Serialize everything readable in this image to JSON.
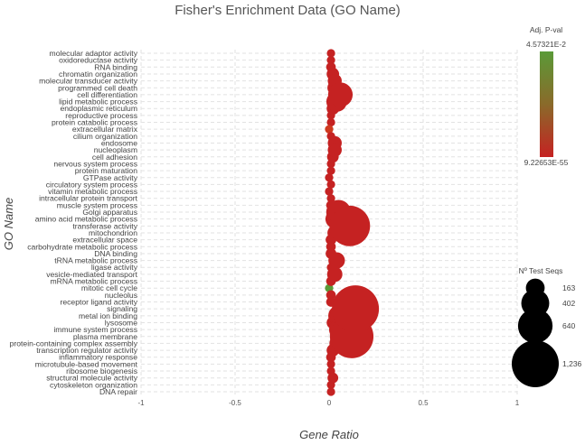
{
  "chart_data": {
    "type": "scatter",
    "title": "Fisher's Enrichment Data (GO Name)",
    "xlabel": "Gene Ratio",
    "ylabel": "GO Name",
    "xlim": [
      -1,
      1
    ],
    "x_ticks": [
      "-1",
      "-0.5",
      "0",
      "0.5",
      "1"
    ],
    "grid": true,
    "categories": [
      "molecular adaptor activity",
      "oxidoreductase activity",
      "RNA binding",
      "chromatin organization",
      "molecular transducer activity",
      "programmed cell death",
      "cell differentiation",
      "lipid metabolic process",
      "endoplasmic reticulum",
      "reproductive process",
      "protein catabolic process",
      "extracellular matrix",
      "cilium organization",
      "endosome",
      "nucleoplasm",
      "cell adhesion",
      "nervous system process",
      "protein maturation",
      "GTPase activity",
      "circulatory system process",
      "vitamin metabolic process",
      "intracellular protein transport",
      "muscle system process",
      "Golgi apparatus",
      "amino acid metabolic process",
      "transferase activity",
      "mitochondrion",
      "extracellular space",
      "carbohydrate metabolic process",
      "DNA binding",
      "tRNA metabolic process",
      "ligase activity",
      "vesicle-mediated transport",
      "mRNA metabolic process",
      "mitotic cell cycle",
      "nucleolus",
      "receptor ligand activity",
      "signaling",
      "metal ion binding",
      "lysosome",
      "immune system process",
      "plasma membrane",
      "protein-containing complex assembly",
      "transcription regulator activity",
      "inflammatory response",
      "microtubule-based movement",
      "ribosome biogenesis",
      "structural molecule activity",
      "cytoskeleton organization",
      "DNA repair"
    ],
    "series": [
      {
        "x": [
          0.01,
          0.01,
          0.01,
          0.02,
          0.03,
          0.03,
          0.06,
          0.04,
          0.02,
          0.01,
          0.01,
          0.0,
          0.01,
          0.03,
          0.03,
          0.02,
          0.01,
          0.01,
          0.0,
          0.01,
          0.0,
          0.01,
          0.01,
          0.05,
          0.03,
          0.11,
          0.03,
          0.01,
          0.01,
          0.01,
          0.04,
          0.01,
          0.03,
          0.01,
          0.0,
          0.01,
          0.01,
          0.14,
          0.05,
          0.02,
          0.06,
          0.12,
          0.05,
          0.02,
          0.01,
          0.01,
          0.01,
          0.02,
          0.01,
          0.01
        ],
        "size": [
          20,
          20,
          30,
          60,
          80,
          90,
          300,
          200,
          60,
          20,
          20,
          20,
          20,
          80,
          80,
          50,
          20,
          20,
          20,
          20,
          20,
          20,
          30,
          300,
          160,
          900,
          90,
          40,
          30,
          40,
          120,
          20,
          100,
          30,
          20,
          30,
          30,
          1236,
          200,
          60,
          250,
          1050,
          150,
          60,
          30,
          20,
          20,
          40,
          20,
          20
        ],
        "color": [
          "#c52222",
          "#c52222",
          "#c52222",
          "#c52222",
          "#c52222",
          "#c52222",
          "#c52222",
          "#c52222",
          "#c52222",
          "#c52222",
          "#c52222",
          "#cf3a1f",
          "#c52222",
          "#c52222",
          "#c52222",
          "#c52222",
          "#c52222",
          "#c52222",
          "#c52222",
          "#c52222",
          "#c52222",
          "#c52222",
          "#c52222",
          "#c52222",
          "#c52222",
          "#c52222",
          "#c52222",
          "#c52222",
          "#c52222",
          "#c52222",
          "#c52222",
          "#c52222",
          "#c52222",
          "#c52222",
          "#5a9a38",
          "#c52222",
          "#c52222",
          "#c52222",
          "#c52222",
          "#c52222",
          "#c52222",
          "#c52222",
          "#c52222",
          "#c52222",
          "#c52222",
          "#c52222",
          "#c52222",
          "#c52222",
          "#c52222",
          "#c52222"
        ]
      }
    ],
    "color_legend": {
      "title": "Adj. P-val",
      "max_label": "4.57321E-2",
      "min_label": "9.22653E-55",
      "top_color": "#5a9a38",
      "mid_color": "#8a6a2a",
      "bottom_color": "#c52222"
    },
    "size_legend": {
      "title": "Nº Test Seqs",
      "entries": [
        {
          "label": "163",
          "value": 163
        },
        {
          "label": "402",
          "value": 402
        },
        {
          "label": "640",
          "value": 640
        },
        {
          "label": "1,236",
          "value": 1236
        }
      ]
    }
  }
}
